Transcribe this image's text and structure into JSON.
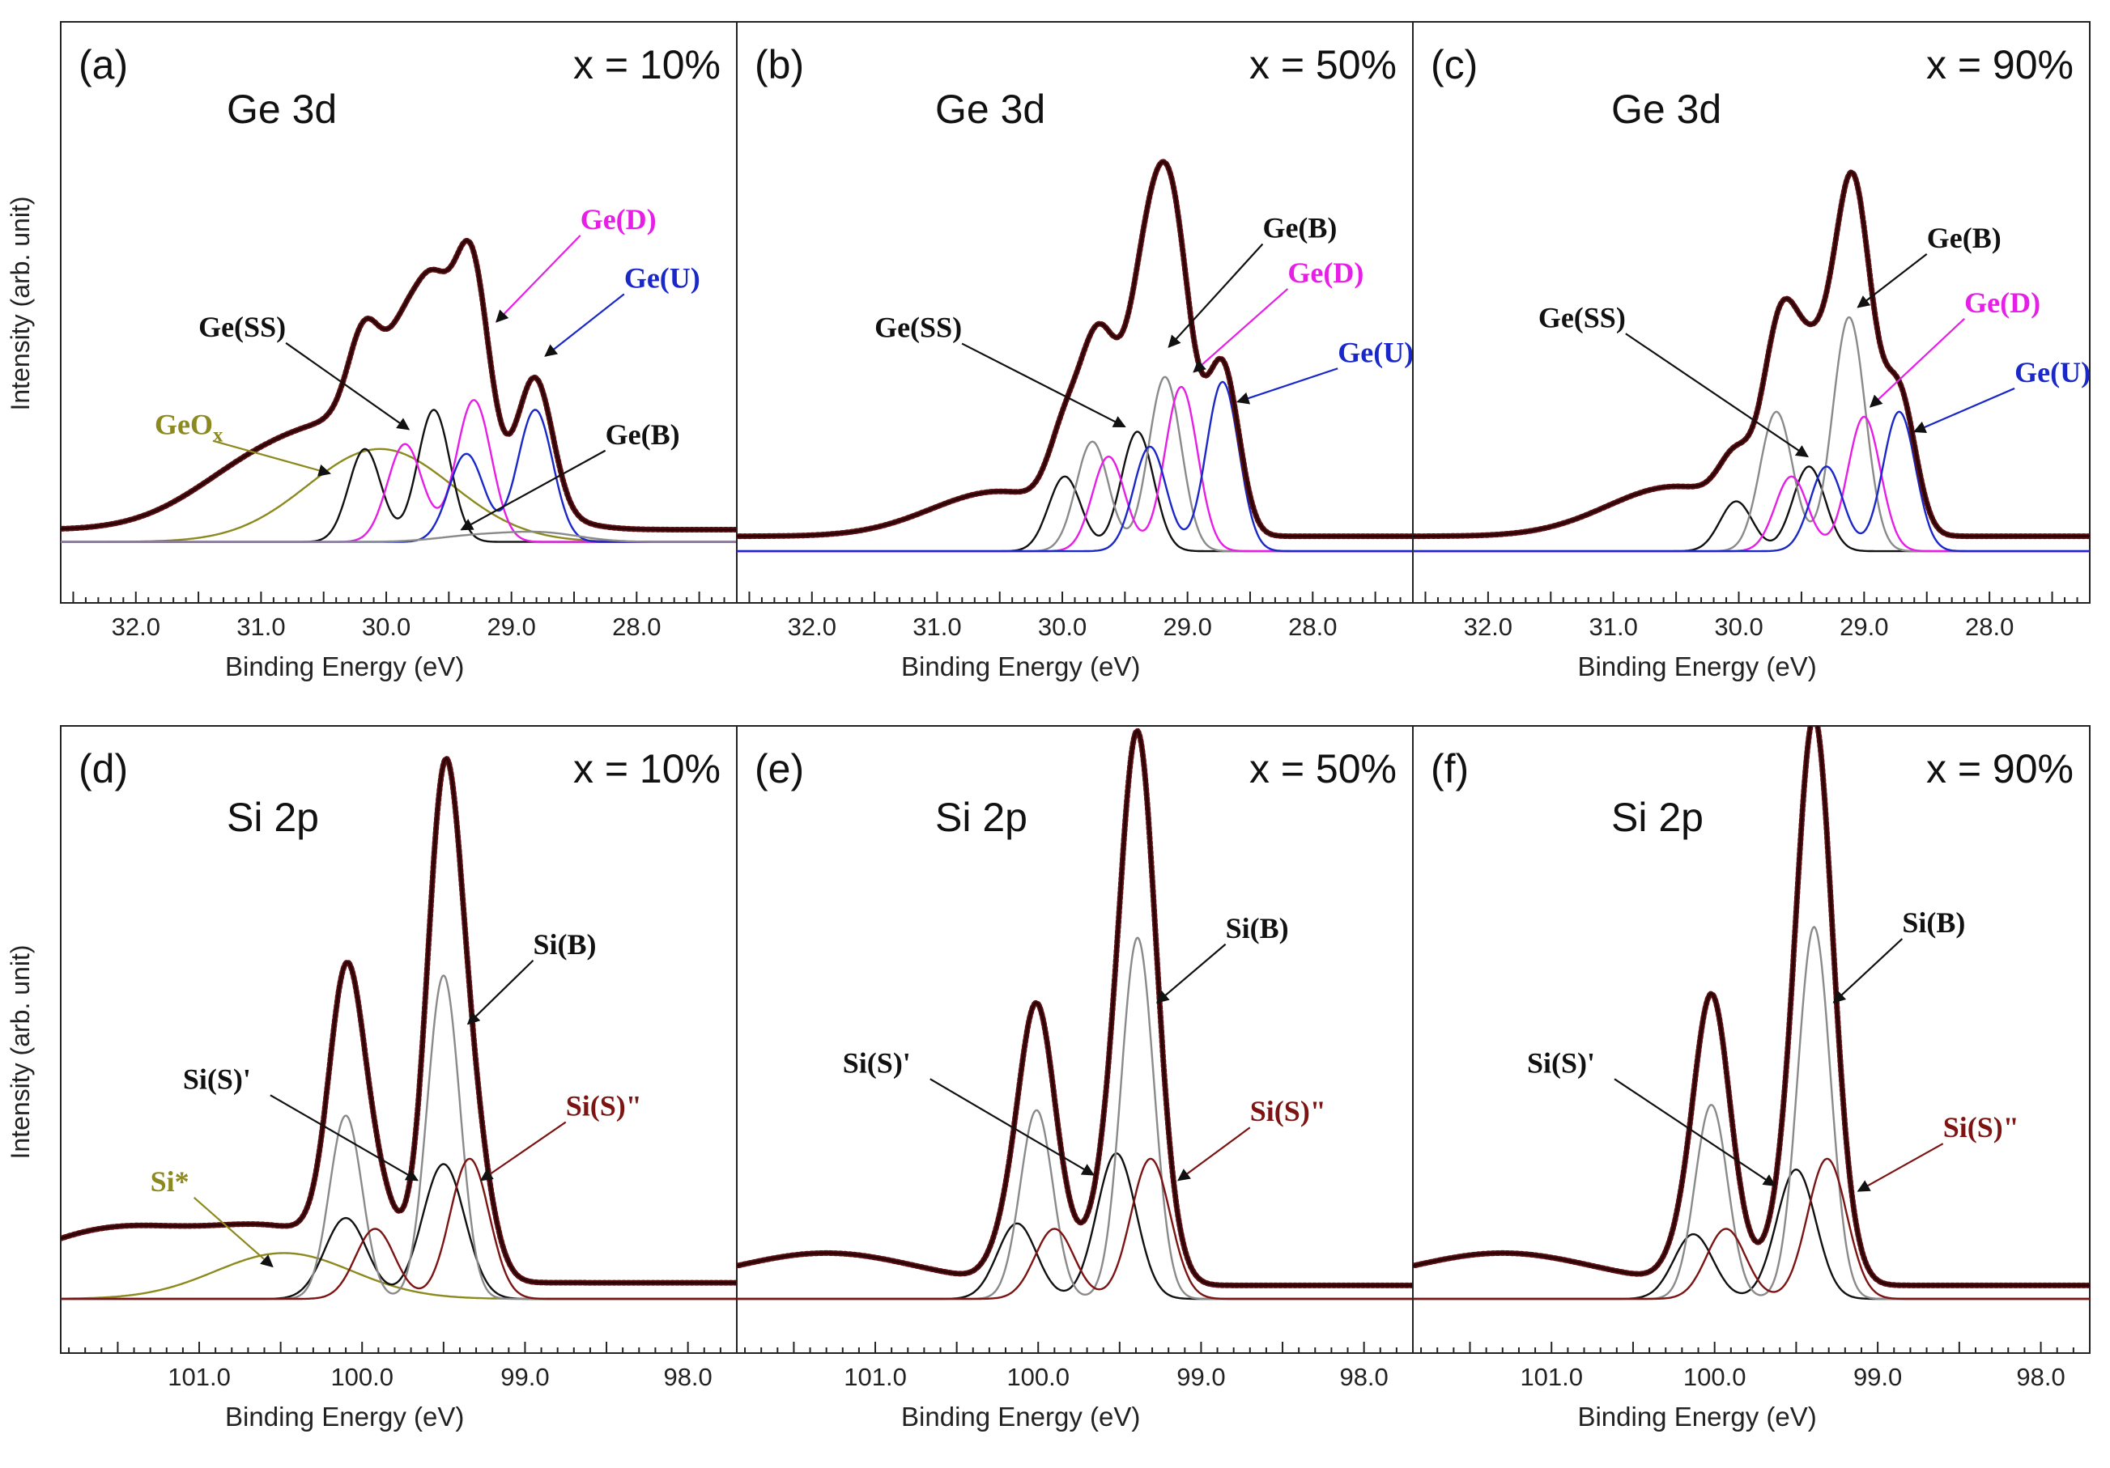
{
  "figure": {
    "ylabel": "Intensity (arb. unit)",
    "xlabel": "Binding Energy (eV)"
  },
  "colors": {
    "data": "#5a0f12",
    "SS": "#111111",
    "B": "#8a8a8a",
    "D": "#e61ee6",
    "U": "#1a28c8",
    "oxide": "#8c8a1e",
    "SiS2": "#7d1414"
  },
  "chart_data": [
    {
      "type": "line",
      "panel": "(a)",
      "core": "Ge 3d",
      "composition": "x = 10%",
      "xlim": [
        32.6,
        27.2
      ],
      "ticks": [
        "32.0",
        "31.0",
        "30.0",
        "29.0",
        "28.0"
      ],
      "ylim": [
        -0.08,
        1.06
      ],
      "series": [
        {
          "name": "GeOx",
          "color": "oxide",
          "peaks": [
            [
              30.05,
              0.19,
              0.58
            ]
          ],
          "bg": 0
        },
        {
          "name": "Ge(SS)",
          "color": "SS",
          "peaks": [
            [
              30.17,
              0.19,
              0.13
            ],
            [
              29.62,
              0.27,
              0.13
            ]
          ],
          "bg": 0
        },
        {
          "name": "Ge(D)",
          "color": "D",
          "peaks": [
            [
              29.85,
              0.2,
              0.14
            ],
            [
              29.3,
              0.29,
              0.14
            ]
          ],
          "bg": 0
        },
        {
          "name": "Ge(U)",
          "color": "U",
          "peaks": [
            [
              29.36,
              0.18,
              0.14
            ],
            [
              28.81,
              0.27,
              0.14
            ]
          ],
          "bg": 0
        },
        {
          "name": "Ge(B)",
          "color": "B",
          "peaks": [
            [
              29.3,
              0.012,
              0.3
            ],
            [
              28.75,
              0.018,
              0.3
            ]
          ],
          "bg": 0
        }
      ],
      "envelope": {
        "bg": 0.025,
        "tail": [
          31.0,
          0.12
        ]
      },
      "annotations": [
        {
          "text": "Ge(SS)",
          "x": 31.5,
          "y": 0.42,
          "color": "SS",
          "arrow": [
            29.82,
            0.23
          ]
        },
        {
          "text": "GeOx",
          "sub": "x",
          "x": 31.85,
          "y": 0.22,
          "color": "oxide",
          "arrow": [
            30.45,
            0.14
          ]
        },
        {
          "text": "Ge(D)",
          "x": 28.45,
          "y": 0.64,
          "color": "D",
          "arrow": [
            29.12,
            0.45
          ]
        },
        {
          "text": "Ge(U)",
          "x": 28.1,
          "y": 0.52,
          "color": "U",
          "arrow": [
            28.73,
            0.38
          ]
        },
        {
          "text": "Ge(B)",
          "x": 28.25,
          "y": 0.2,
          "color": "SS",
          "arrow": [
            29.4,
            0.025
          ]
        }
      ]
    },
    {
      "type": "line",
      "panel": "(b)",
      "core": "Ge 3d",
      "composition": "x = 50%",
      "xlim": [
        32.6,
        27.2
      ],
      "ticks": [
        "32.0",
        "31.0",
        "30.0",
        "29.0",
        "28.0"
      ],
      "ylim": [
        -0.06,
        1.06
      ],
      "series": [
        {
          "name": "Ge(SS)",
          "color": "SS",
          "peaks": [
            [
              29.98,
              0.15,
              0.13
            ],
            [
              29.4,
              0.24,
              0.13
            ]
          ],
          "bg": 0
        },
        {
          "name": "Ge(B)",
          "color": "B",
          "peaks": [
            [
              29.76,
              0.22,
              0.13
            ],
            [
              29.18,
              0.35,
              0.13
            ]
          ],
          "bg": 0
        },
        {
          "name": "Ge(D)",
          "color": "D",
          "peaks": [
            [
              29.63,
              0.19,
              0.13
            ],
            [
              29.05,
              0.33,
              0.13
            ]
          ],
          "bg": 0
        },
        {
          "name": "Ge(U)",
          "color": "U",
          "peaks": [
            [
              29.3,
              0.21,
              0.13
            ],
            [
              28.72,
              0.34,
              0.13
            ]
          ],
          "bg": 0
        }
      ],
      "envelope": {
        "bg": 0.03,
        "tail": [
          30.5,
          0.09
        ]
      },
      "annotations": [
        {
          "text": "Ge(SS)",
          "x": 31.5,
          "y": 0.43,
          "color": "SS",
          "arrow": [
            29.5,
            0.25
          ]
        },
        {
          "text": "Ge(B)",
          "x": 28.4,
          "y": 0.63,
          "color": "SS",
          "arrow": [
            29.15,
            0.41
          ]
        },
        {
          "text": "Ge(D)",
          "x": 28.2,
          "y": 0.54,
          "color": "D",
          "arrow": [
            28.95,
            0.36
          ]
        },
        {
          "text": "Ge(U)",
          "x": 27.8,
          "y": 0.38,
          "color": "U",
          "arrow": [
            28.6,
            0.3
          ]
        }
      ]
    },
    {
      "type": "line",
      "panel": "(c)",
      "core": "Ge 3d",
      "composition": "x = 90%",
      "xlim": [
        32.6,
        27.2
      ],
      "ticks": [
        "32.0",
        "31.0",
        "30.0",
        "29.0",
        "28.0"
      ],
      "ylim": [
        -0.06,
        1.06
      ],
      "series": [
        {
          "name": "Ge(SS)",
          "color": "SS",
          "peaks": [
            [
              30.02,
              0.1,
              0.13
            ],
            [
              29.44,
              0.17,
              0.13
            ]
          ],
          "bg": 0
        },
        {
          "name": "Ge(B)",
          "color": "B",
          "peaks": [
            [
              29.7,
              0.28,
              0.13
            ],
            [
              29.12,
              0.47,
              0.13
            ]
          ],
          "bg": 0
        },
        {
          "name": "Ge(D)",
          "color": "D",
          "peaks": [
            [
              29.58,
              0.15,
              0.13
            ],
            [
              29.0,
              0.27,
              0.13
            ]
          ],
          "bg": 0
        },
        {
          "name": "Ge(U)",
          "color": "U",
          "peaks": [
            [
              29.3,
              0.17,
              0.13
            ],
            [
              28.72,
              0.28,
              0.13
            ]
          ],
          "bg": 0
        }
      ],
      "envelope": {
        "bg": 0.03,
        "tail": [
          30.5,
          0.1
        ]
      },
      "annotations": [
        {
          "text": "Ge(SS)",
          "x": 31.6,
          "y": 0.45,
          "color": "SS",
          "arrow": [
            29.45,
            0.19
          ]
        },
        {
          "text": "Ge(B)",
          "x": 28.5,
          "y": 0.61,
          "color": "SS",
          "arrow": [
            29.05,
            0.49
          ]
        },
        {
          "text": "Ge(D)",
          "x": 28.2,
          "y": 0.48,
          "color": "D",
          "arrow": [
            28.95,
            0.29
          ]
        },
        {
          "text": "Ge(U)",
          "x": 27.8,
          "y": 0.34,
          "color": "U",
          "arrow": [
            28.6,
            0.24
          ]
        }
      ]
    },
    {
      "type": "line",
      "panel": "(d)",
      "core": "Si 2p",
      "composition": "x = 10%",
      "xlim": [
        101.85,
        97.7
      ],
      "ticks": [
        "101.0",
        "100.0",
        "99.0",
        "98.0"
      ],
      "ylim": [
        -0.06,
        1.06
      ],
      "series": [
        {
          "name": "Si*",
          "color": "oxide",
          "peaks": [
            [
              100.48,
              0.085,
              0.42
            ]
          ],
          "bg": 0
        },
        {
          "name": "Si(S)'",
          "color": "SS",
          "peaks": [
            [
              100.1,
              0.15,
              0.13
            ],
            [
              99.5,
              0.25,
              0.13
            ]
          ],
          "bg": 0
        },
        {
          "name": "Si(B)",
          "color": "B",
          "peaks": [
            [
              100.1,
              0.34,
              0.1
            ],
            [
              99.5,
              0.6,
              0.1
            ]
          ],
          "bg": 0
        },
        {
          "name": "Si(S)\"",
          "color": "SiS2",
          "peaks": [
            [
              99.92,
              0.13,
              0.12
            ],
            [
              99.34,
              0.26,
              0.12
            ]
          ],
          "bg": 0
        }
      ],
      "envelope": {
        "bg": 0.03,
        "tail": [
          101.5,
          0.1
        ]
      },
      "annotations": [
        {
          "text": "Si(S)'",
          "x": 101.1,
          "y": 0.39,
          "color": "SS",
          "arrow": [
            99.66,
            0.22
          ]
        },
        {
          "text": "Si(B)",
          "x": 98.95,
          "y": 0.64,
          "color": "SS",
          "arrow": [
            99.35,
            0.51
          ]
        },
        {
          "text": "Si(S)\"",
          "x": 98.75,
          "y": 0.34,
          "color": "SiS2",
          "arrow": [
            99.27,
            0.22
          ]
        },
        {
          "text": "Si*",
          "x": 101.3,
          "y": 0.2,
          "color": "oxide",
          "arrow": [
            100.55,
            0.06
          ]
        }
      ]
    },
    {
      "type": "line",
      "panel": "(e)",
      "core": "Si 2p",
      "composition": "x = 50%",
      "xlim": [
        101.85,
        97.7
      ],
      "ticks": [
        "101.0",
        "100.0",
        "99.0",
        "98.0"
      ],
      "ylim": [
        -0.06,
        1.06
      ],
      "series": [
        {
          "name": "Si(S)'",
          "color": "SS",
          "peaks": [
            [
              100.13,
              0.14,
              0.12
            ],
            [
              99.52,
              0.27,
              0.12
            ]
          ],
          "bg": 0
        },
        {
          "name": "Si(B)",
          "color": "B",
          "peaks": [
            [
              100.01,
              0.35,
              0.1
            ],
            [
              99.39,
              0.67,
              0.1
            ]
          ],
          "bg": 0
        },
        {
          "name": "Si(S)\"",
          "color": "SiS2",
          "peaks": [
            [
              99.9,
              0.13,
              0.12
            ],
            [
              99.31,
              0.26,
              0.12
            ]
          ],
          "bg": 0
        }
      ],
      "envelope": {
        "bg": 0.025,
        "tail": [
          101.3,
          0.06
        ]
      },
      "annotations": [
        {
          "text": "Si(S)'",
          "x": 101.2,
          "y": 0.42,
          "color": "SS",
          "arrow": [
            99.66,
            0.23
          ]
        },
        {
          "text": "Si(B)",
          "x": 98.85,
          "y": 0.67,
          "color": "SS",
          "arrow": [
            99.27,
            0.55
          ]
        },
        {
          "text": "Si(S)\"",
          "x": 98.7,
          "y": 0.33,
          "color": "SiS2",
          "arrow": [
            99.14,
            0.22
          ]
        }
      ]
    },
    {
      "type": "line",
      "panel": "(f)",
      "core": "Si 2p",
      "composition": "x = 90%",
      "xlim": [
        101.85,
        97.7
      ],
      "ticks": [
        "101.0",
        "100.0",
        "99.0",
        "98.0"
      ],
      "ylim": [
        -0.06,
        1.06
      ],
      "series": [
        {
          "name": "Si(S)'",
          "color": "SS",
          "peaks": [
            [
              100.13,
              0.12,
              0.12
            ],
            [
              99.5,
              0.24,
              0.12
            ]
          ],
          "bg": 0
        },
        {
          "name": "Si(B)",
          "color": "B",
          "peaks": [
            [
              100.02,
              0.36,
              0.1
            ],
            [
              99.39,
              0.69,
              0.1
            ]
          ],
          "bg": 0
        },
        {
          "name": "Si(S)\"",
          "color": "SiS2",
          "peaks": [
            [
              99.93,
              0.13,
              0.12
            ],
            [
              99.31,
              0.26,
              0.12
            ]
          ],
          "bg": 0
        }
      ],
      "envelope": {
        "bg": 0.025,
        "tail": [
          101.3,
          0.06
        ]
      },
      "annotations": [
        {
          "text": "Si(S)'",
          "x": 101.15,
          "y": 0.42,
          "color": "SS",
          "arrow": [
            99.63,
            0.21
          ]
        },
        {
          "text": "Si(B)",
          "x": 98.85,
          "y": 0.68,
          "color": "SS",
          "arrow": [
            99.27,
            0.55
          ]
        },
        {
          "text": "Si(S)\"",
          "x": 98.6,
          "y": 0.3,
          "color": "SiS2",
          "arrow": [
            99.12,
            0.2
          ]
        }
      ]
    }
  ]
}
